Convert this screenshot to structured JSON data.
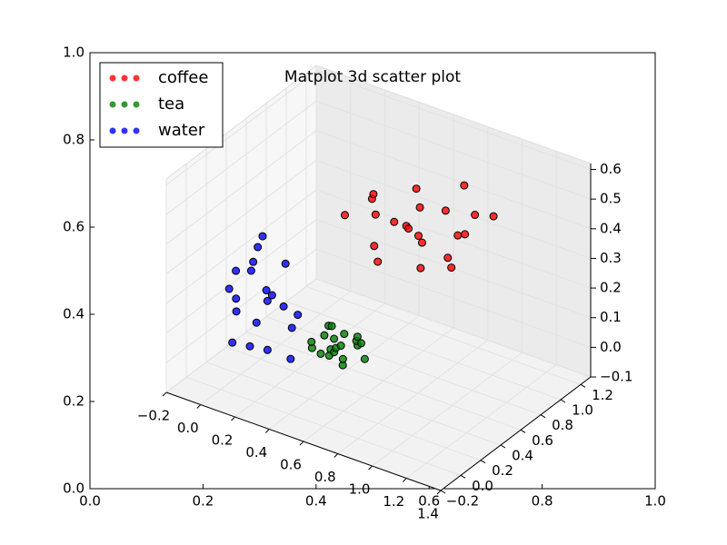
{
  "chart_data": [
    {
      "type": "axes",
      "xlim": [
        0,
        1
      ],
      "ylim": [
        0,
        1
      ],
      "xticks": [
        {
          "value": 0,
          "label": "0.0"
        },
        0.2,
        0.4,
        0.6,
        0.8,
        {
          "value": 1,
          "label": "1.0"
        }
      ],
      "yticks": [
        {
          "value": 0,
          "label": "0.0"
        },
        0.2,
        0.4,
        0.6,
        0.8,
        {
          "value": 1,
          "label": "1.0"
        }
      ]
    },
    {
      "type": "scatter3d",
      "title": "Matplot 3d scatter plot",
      "legend": "upper left",
      "grid": true,
      "xlim": [
        -0.2,
        1.4
      ],
      "ylim": [
        -0.2,
        1.3
      ],
      "zlim": [
        -0.1,
        0.62
      ],
      "xticks": [
        {
          "value": -0.2,
          "label": "−0.2"
        },
        {
          "value": 0,
          "label": "0.0"
        },
        0.2,
        0.4,
        0.6,
        0.8,
        {
          "value": 1,
          "label": "1.0"
        },
        1.2,
        1.4
      ],
      "yticks": [
        {
          "value": -0.2,
          "label": "−0.2"
        },
        {
          "value": 0,
          "label": "0.0"
        },
        0.2,
        0.4,
        0.6,
        0.8,
        {
          "value": 1,
          "label": "1.0"
        },
        1.2
      ],
      "zticks": [
        {
          "value": -0.1,
          "label": "−0.1"
        },
        {
          "value": 0,
          "label": "0.0"
        },
        0.1,
        0.2,
        0.3,
        0.4,
        0.5,
        0.6
      ],
      "series": [
        {
          "name": "coffee",
          "color": "#ff0000",
          "x": [
            0.2,
            0.3,
            0.4,
            0.5,
            0.6,
            0.7,
            0.8,
            0.9,
            0.25,
            0.45,
            0.55,
            0.65,
            0.75,
            0.85,
            0.35,
            0.5,
            0.7,
            0.95,
            0.6,
            0.8,
            0.4,
            0.9
          ],
          "y": [
            0.9,
            1.0,
            0.85,
            1.1,
            0.95,
            1.05,
            0.9,
            1.0,
            1.1,
            0.8,
            1.05,
            0.9,
            1.15,
            0.85,
            0.95,
            1.0,
            0.8,
            1.1,
            0.85,
            1.0,
            1.05,
            0.9
          ],
          "z": [
            0.3,
            0.35,
            0.25,
            0.4,
            0.3,
            0.38,
            0.28,
            0.42,
            0.33,
            0.22,
            0.36,
            0.3,
            0.45,
            0.27,
            0.32,
            0.3,
            0.25,
            0.4,
            0.35,
            0.33,
            0.28,
            0.38
          ]
        },
        {
          "name": "tea",
          "color": "#008000",
          "x": [
            0.3,
            0.35,
            0.4,
            0.45,
            0.28,
            0.38,
            0.42,
            0.5,
            0.33,
            0.47,
            0.36,
            0.25,
            0.44,
            0.39,
            0.31,
            0.52,
            0.41,
            0.34,
            0.48,
            0.37
          ],
          "y": [
            0.4,
            0.5,
            0.55,
            0.45,
            0.6,
            0.35,
            0.65,
            0.5,
            0.52,
            0.6,
            0.42,
            0.48,
            0.38,
            0.7,
            0.58,
            0.55,
            0.45,
            0.62,
            0.4,
            0.5
          ],
          "z": [
            0.0,
            -0.02,
            0.03,
            -0.04,
            0.02,
            0.01,
            -0.03,
            0.04,
            -0.05,
            0.0,
            0.05,
            -0.01,
            0.02,
            -0.02,
            0.03,
            -0.03,
            0.01,
            -0.04,
            0.0,
            0.02
          ]
        },
        {
          "name": "water",
          "color": "#0000ff",
          "x": [
            0.05,
            0.12,
            0.2,
            0.28,
            0.1,
            0.18,
            0.3,
            0.35,
            0.02,
            0.15,
            0.25,
            0.08,
            0.22,
            0.32,
            0.14,
            0.27,
            0.06,
            0.19,
            0.38,
            0.11
          ],
          "y": [
            0.0,
            0.1,
            -0.05,
            0.15,
            0.2,
            0.05,
            0.0,
            0.1,
            0.12,
            -0.1,
            0.22,
            -0.02,
            0.08,
            -0.08,
            0.18,
            0.25,
            0.05,
            0.0,
            0.12,
            0.28
          ],
          "z": [
            0.25,
            0.3,
            0.1,
            0.2,
            0.35,
            0.15,
            0.28,
            0.05,
            0.18,
            0.22,
            0.32,
            0.08,
            0.26,
            0.12,
            0.4,
            0.1,
            0.3,
            0.37,
            0.2,
            0.15
          ]
        }
      ]
    }
  ]
}
